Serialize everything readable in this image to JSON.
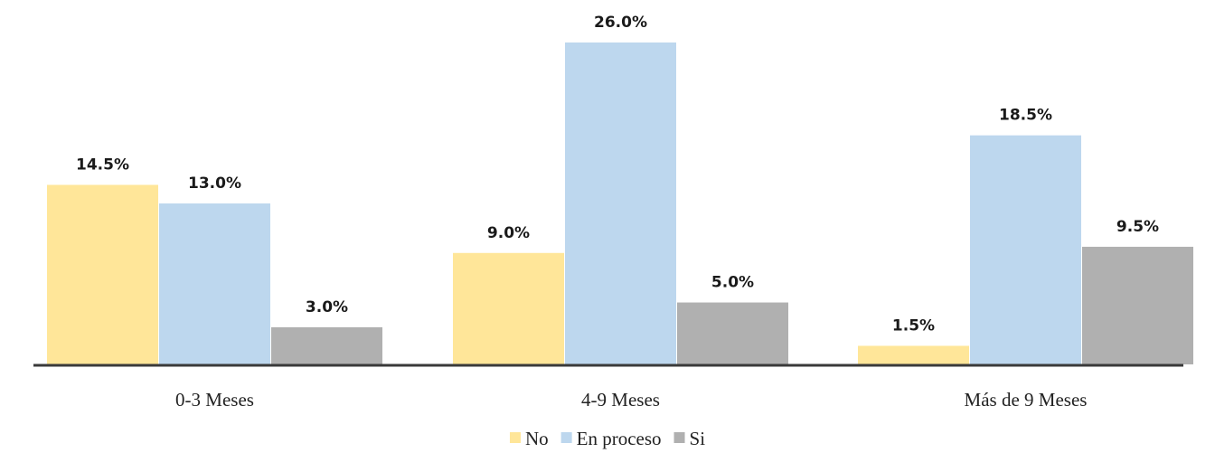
{
  "chart_data": {
    "type": "bar",
    "categories": [
      "0-3 Meses",
      "4-9 Meses",
      "Más de 9 Meses"
    ],
    "series": [
      {
        "name": "No",
        "values": [
          14.5,
          9.0,
          1.5
        ],
        "labels": [
          "14.5%",
          "9.0%",
          "1.5%"
        ],
        "color": "#FFE699"
      },
      {
        "name": "En proceso",
        "values": [
          13.0,
          26.0,
          18.5
        ],
        "labels": [
          "13.0%",
          "26.0%",
          "18.5%"
        ],
        "color": "#BDD7EE"
      },
      {
        "name": "Si",
        "values": [
          3.0,
          5.0,
          9.5
        ],
        "labels": [
          "3.0%",
          "5.0%",
          "9.5%"
        ],
        "color": "#B0B0B0"
      }
    ],
    "ylim": [
      0,
      26
    ],
    "grid": false,
    "legend_position": "bottom",
    "axis_color": "#3a3a3a"
  }
}
